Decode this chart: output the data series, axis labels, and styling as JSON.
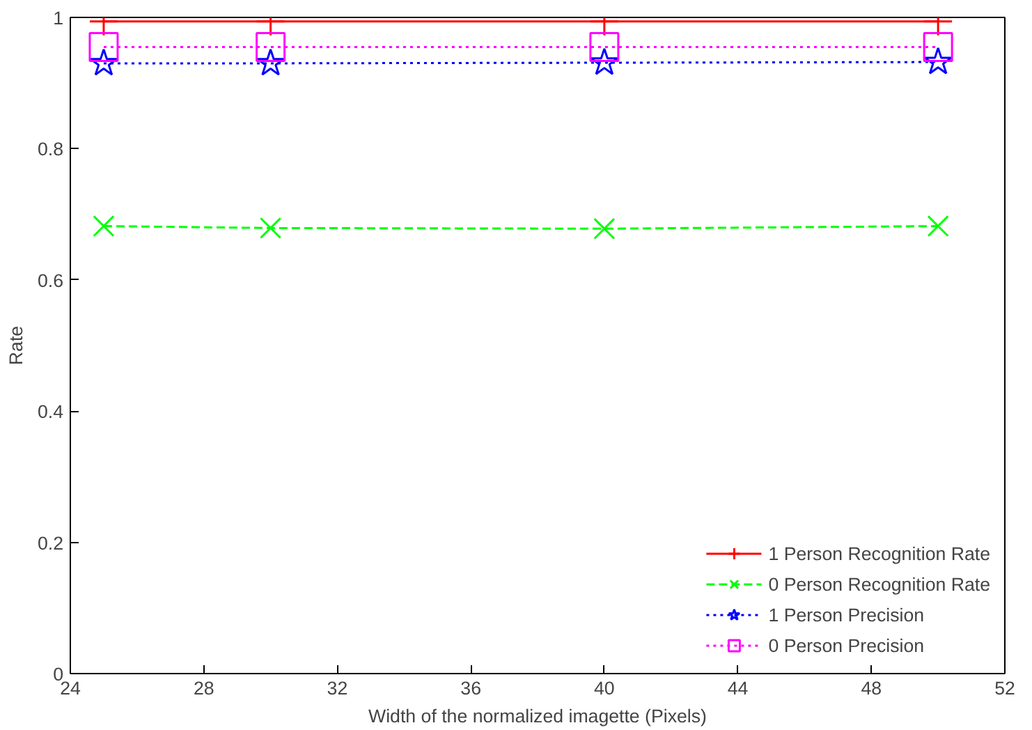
{
  "chart_data": {
    "type": "line",
    "xlabel": "Width of the normalized imagette (Pixels)",
    "ylabel": "Rate",
    "x": [
      25,
      30,
      40,
      50
    ],
    "series": [
      {
        "name": "1 Person Recognition Rate",
        "color": "#ff0000",
        "marker": "cross",
        "line_style": "solid",
        "values": [
          0.994,
          0.994,
          0.994,
          0.994
        ]
      },
      {
        "name": "0 Person Recognition Rate",
        "color": "#00ff00",
        "marker": "x",
        "line_style": "dashed",
        "values": [
          0.682,
          0.679,
          0.678,
          0.682
        ]
      },
      {
        "name": "1 Person Precision",
        "color": "#0000ff",
        "marker": "star",
        "line_style": "dotted",
        "values": [
          0.93,
          0.93,
          0.931,
          0.932
        ]
      },
      {
        "name": "0 Person Precision",
        "color": "#ff00ff",
        "marker": "square",
        "line_style": "dotted",
        "values": [
          0.955,
          0.955,
          0.955,
          0.955
        ]
      }
    ],
    "xlim": [
      24,
      52
    ],
    "xticks": [
      24,
      28,
      32,
      36,
      40,
      44,
      48,
      52
    ],
    "ylim": [
      0,
      1
    ],
    "yticks": [
      0,
      0.2,
      0.4,
      0.6,
      0.8,
      1
    ],
    "grid": false,
    "legend": "bottom right"
  }
}
